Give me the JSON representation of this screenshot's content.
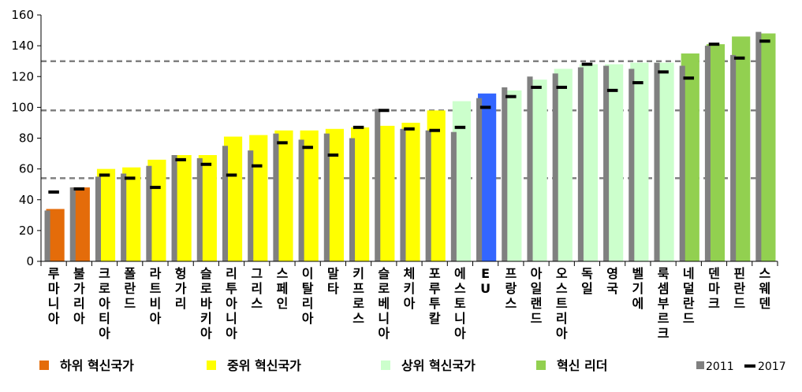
{
  "chart_data": {
    "type": "bar",
    "ylim": [
      0,
      160
    ],
    "yticks": [
      0,
      20,
      40,
      60,
      80,
      100,
      120,
      140,
      160
    ],
    "reference_lines": [
      54,
      98,
      130
    ],
    "categories": [
      "루마니아",
      "불가리아",
      "크로아티아",
      "폴란드",
      "라트비아",
      "헝가리",
      "슬로바키아",
      "리투아니아",
      "그리스",
      "스페인",
      "이탈리아",
      "말타",
      "키프로스",
      "슬로베니아",
      "체키아",
      "포루투칼",
      "에스토니아",
      "EU",
      "프랑스",
      "아일랜드",
      "오스트리아",
      "독일",
      "영국",
      "벨기에",
      "룩셈부르크",
      "네덜란드",
      "덴마크",
      "핀란드",
      "스웨덴"
    ],
    "group": [
      "low",
      "low",
      "mid",
      "mid",
      "mid",
      "mid",
      "mid",
      "mid",
      "mid",
      "mid",
      "mid",
      "mid",
      "mid",
      "mid",
      "mid",
      "mid",
      "high",
      "eu",
      "high",
      "high",
      "high",
      "high",
      "high",
      "high",
      "high",
      "leader",
      "leader",
      "leader",
      "leader"
    ],
    "value_2018": [
      34,
      48,
      60,
      61,
      66,
      69,
      69,
      81,
      82,
      85,
      85,
      86,
      87,
      88,
      90,
      98,
      104,
      109,
      111,
      118,
      125,
      128,
      128,
      129,
      129,
      135,
      141,
      146,
      148
    ],
    "value_2011": [
      33,
      48,
      55,
      57,
      62,
      69,
      67,
      75,
      72,
      83,
      79,
      83,
      80,
      99,
      86,
      85,
      84,
      106,
      113,
      120,
      122,
      126,
      127,
      125,
      129,
      127,
      140,
      134,
      149
    ],
    "value_2017": [
      45,
      47,
      56,
      54,
      48,
      66,
      63,
      56,
      62,
      77,
      74,
      69,
      87,
      98,
      86,
      85,
      87,
      100,
      107,
      113,
      113,
      128,
      111,
      116,
      123,
      119,
      141,
      132,
      143
    ],
    "colors": {
      "low": "#e46c0a",
      "mid": "#ffff00",
      "high": "#ccffcc",
      "leader": "#92d050",
      "eu": "#3366ff",
      "bar2011": "#808080",
      "marker2017": "#000000",
      "refline": "#808080"
    },
    "legend": [
      {
        "key": "low",
        "label": "하위 혁신국가"
      },
      {
        "key": "mid",
        "label": "중위 혁신국가"
      },
      {
        "key": "high",
        "label": "상위 혁신국가"
      },
      {
        "key": "leader",
        "label": "혁신 리더"
      },
      {
        "key": "bar2011",
        "label": "2011"
      },
      {
        "key": "marker2017",
        "label": "2017"
      }
    ]
  }
}
